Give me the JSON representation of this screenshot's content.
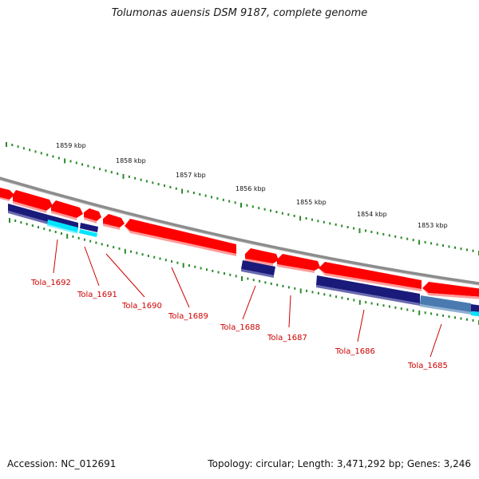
{
  "title": "Tolumonas auensis DSM 9187, complete genome",
  "footer": {
    "accession": "Accession: NC_012691",
    "summary": "Topology: circular; Length: 3,471,292 bp; Genes: 3,246"
  },
  "colors": {
    "backbone": "#8c8c8c",
    "forward_gene": "#ff0000",
    "reverse_gene": "#1a1a7a",
    "cds_light": "#00e5ff",
    "cds_steel": "#4a7ab0",
    "tick": "#2a8a2a",
    "label": "#cc0000"
  },
  "scale_labels": [
    "1859 kbp",
    "1858 kbp",
    "1857 kbp",
    "1856 kbp",
    "1855 kbp",
    "1854 kbp",
    "1853 kbp"
  ],
  "gene_labels": [
    "Tola_1692",
    "Tola_1691",
    "Tola_1690",
    "Tola_1689",
    "Tola_1688",
    "Tola_1687",
    "Tola_1686",
    "Tola_1685"
  ]
}
